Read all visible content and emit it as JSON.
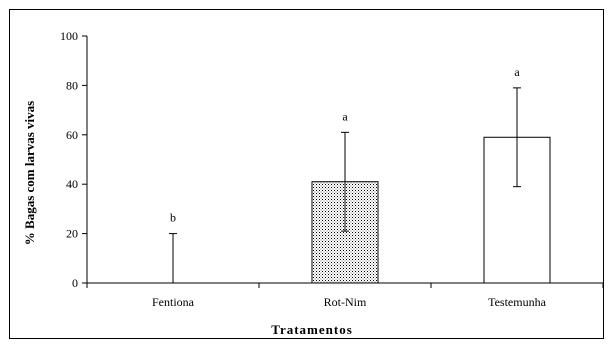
{
  "chart_data": {
    "type": "bar",
    "categories": [
      "Fentiona",
      "Rot-Nim",
      "Testemunha"
    ],
    "values": [
      0,
      41,
      59
    ],
    "error_upper": [
      20,
      61,
      79
    ],
    "error_lower": [
      0,
      21,
      39
    ],
    "significance": [
      "b",
      "a",
      "a"
    ],
    "bar_fills": [
      "none",
      "dotted",
      "white"
    ],
    "xlabel": "Tratamentos",
    "ylabel": "% Bagas com larvas vivas",
    "ylim": [
      0,
      100
    ],
    "yticks": [
      "0",
      "20",
      "40",
      "60",
      "80",
      "100"
    ],
    "grid": false,
    "legend": "none"
  }
}
